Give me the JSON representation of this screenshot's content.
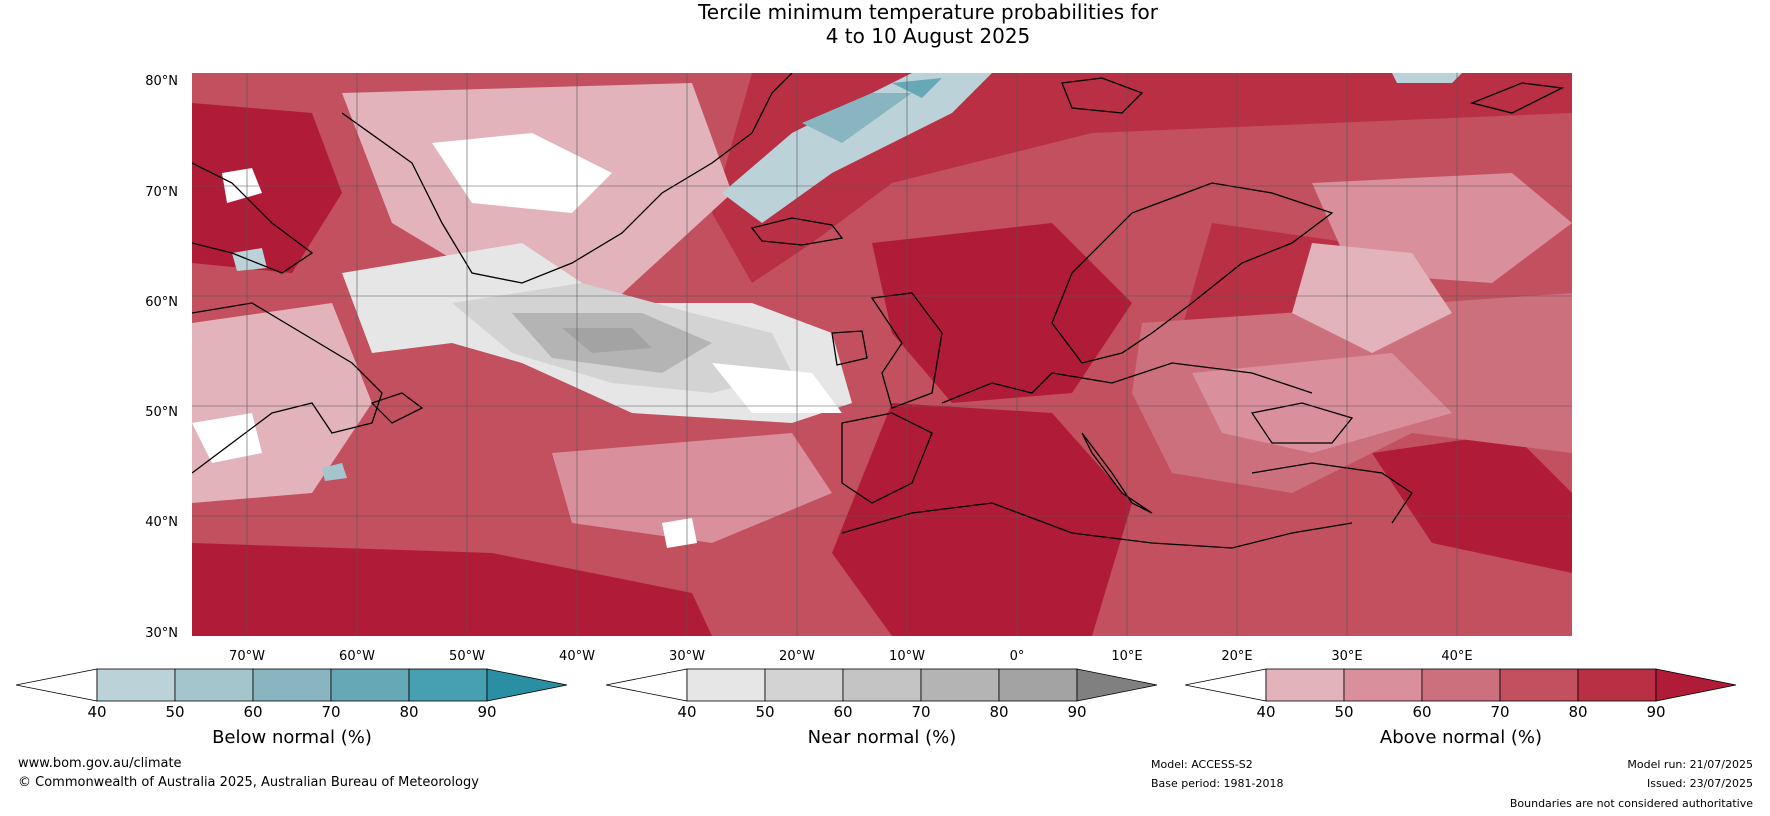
{
  "title_line1": "Tercile minimum temperature probabilities for",
  "title_line2": "4 to 10 August 2025",
  "latitude_labels": [
    "80°N",
    "70°N",
    "60°N",
    "50°N",
    "40°N",
    "30°N"
  ],
  "longitude_labels": [
    "70°W",
    "60°W",
    "50°W",
    "40°W",
    "30°W",
    "20°W",
    "10°W",
    "0°",
    "10°E",
    "20°E",
    "30°E",
    "40°E"
  ],
  "colorbars": [
    {
      "title": "Below normal (%)",
      "ticks": [
        "40",
        "50",
        "60",
        "70",
        "80",
        "90"
      ],
      "colors": [
        "#ffffff",
        "#bcd2d9",
        "#a5c5cd",
        "#88b5c0",
        "#67a8b6",
        "#46a0b2",
        "#2a8fa3"
      ]
    },
    {
      "title": "Near normal (%)",
      "ticks": [
        "40",
        "50",
        "60",
        "70",
        "80",
        "90"
      ],
      "colors": [
        "#ffffff",
        "#e6e6e6",
        "#d3d3d3",
        "#c4c4c4",
        "#b4b4b4",
        "#a3a3a3",
        "#808080"
      ]
    },
    {
      "title": "Above normal (%)",
      "ticks": [
        "40",
        "50",
        "60",
        "70",
        "80",
        "90"
      ],
      "colors": [
        "#ffffff",
        "#e2b3bb",
        "#d98f9c",
        "#cd707e",
        "#c2505f",
        "#b93045",
        "#b01c38"
      ]
    }
  ],
  "footer": {
    "website": "www.bom.gov.au/climate",
    "copyright": "© Commonwealth of Australia 2025, Australian Bureau of Meteorology",
    "model": "Model: ACCESS-S2",
    "base_period": "Base period: 1981-2018",
    "model_run": "Model run: 21/07/2025",
    "issued": "Issued: 23/07/2025",
    "disclaimer": "Boundaries are not considered authoritative"
  }
}
